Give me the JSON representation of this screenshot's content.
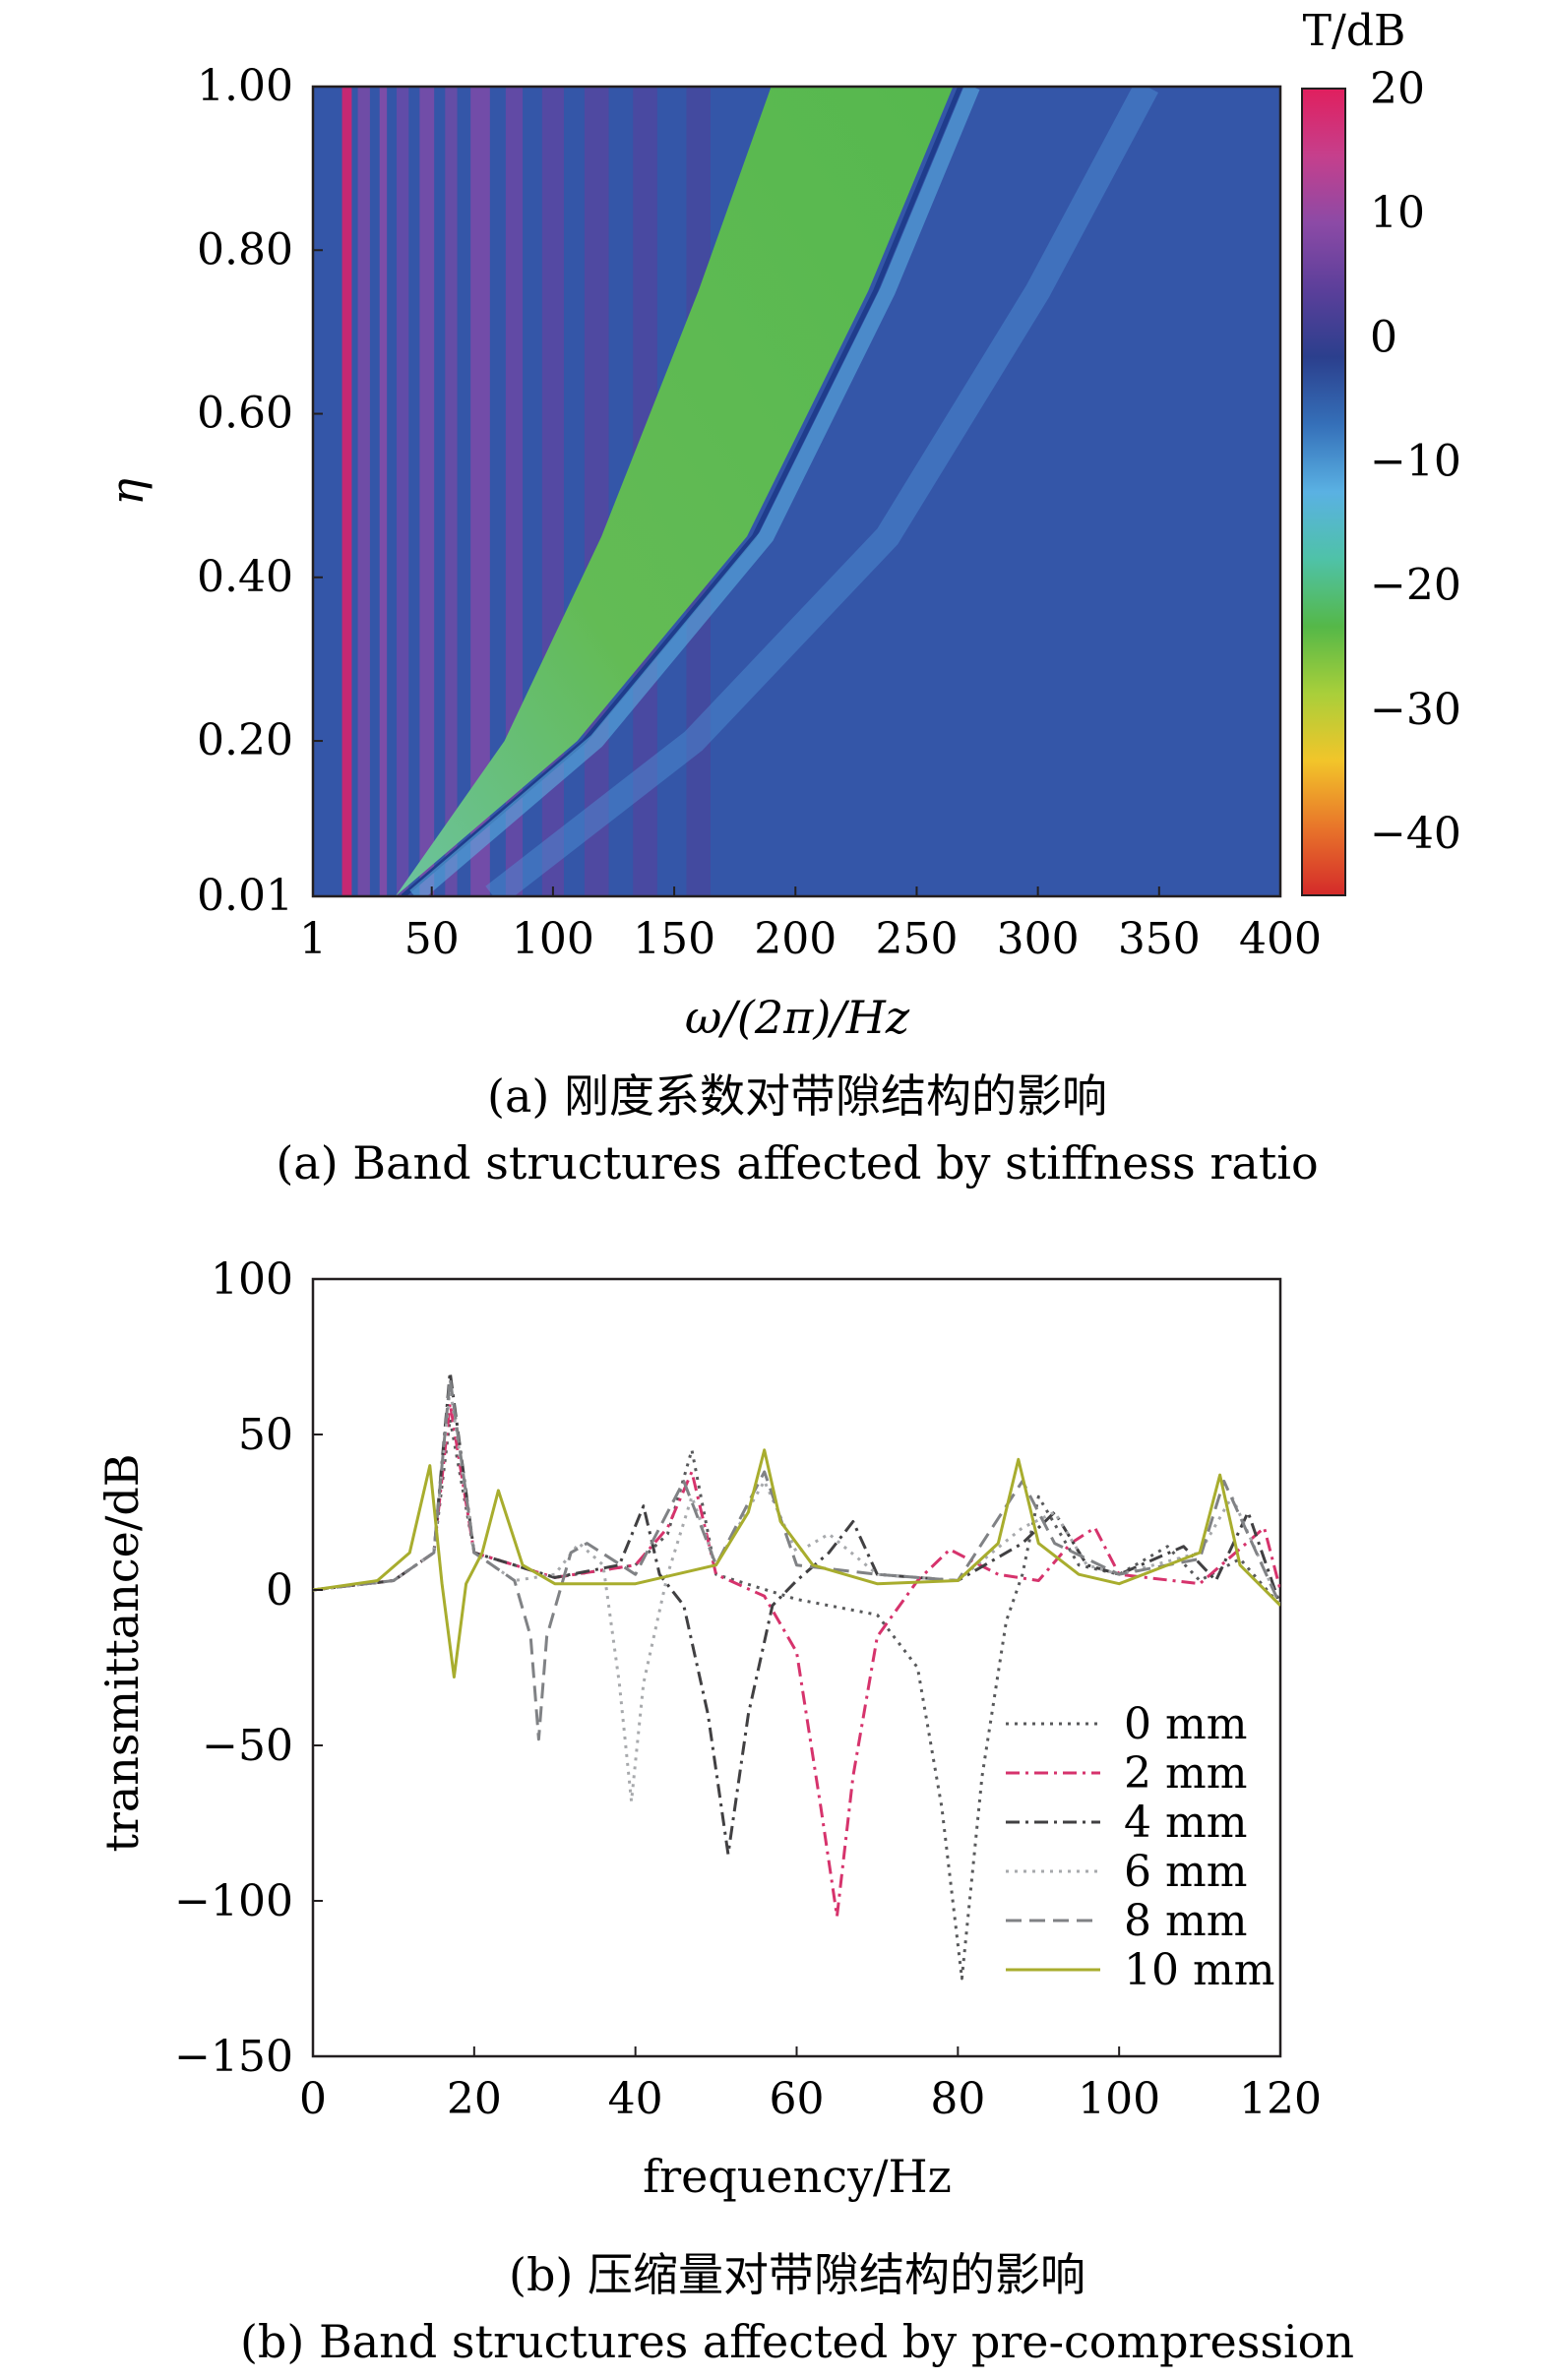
{
  "chart_data": [
    {
      "type": "heatmap",
      "xlabel": "ω/(2π)/Hz",
      "ylabel": "η",
      "x_ticks": [
        "1",
        "50",
        "100",
        "150",
        "200",
        "250",
        "300",
        "350",
        "400"
      ],
      "x_tick_values": [
        1,
        50,
        100,
        150,
        200,
        250,
        300,
        350,
        400
      ],
      "y_ticks": [
        "0.01",
        "0.20",
        "0.40",
        "0.60",
        "0.80",
        "1.00"
      ],
      "y_tick_values": [
        0.01,
        0.2,
        0.4,
        0.6,
        0.8,
        1.0
      ],
      "xlim": [
        1,
        400
      ],
      "ylim": [
        0.01,
        1.0
      ],
      "colorbar": {
        "label": "T/dB",
        "ticks": [
          "20",
          "10",
          "0",
          "−10",
          "−20",
          "−30",
          "−40"
        ],
        "tick_values": [
          20,
          10,
          0,
          -10,
          -20,
          -30,
          -40
        ],
        "range": [
          -45,
          20
        ],
        "colors": [
          "#d42a2a",
          "#e8742a",
          "#f2c52a",
          "#a9cf3a",
          "#55b848",
          "#4fc2a8",
          "#5ab1e3",
          "#3570b9",
          "#2b3f8d",
          "#5b3f9a",
          "#8c4aa6",
          "#c63f8c",
          "#e01f5e"
        ]
      },
      "band_gap": {
        "lower_edge": [
          [
            35,
            0.01
          ],
          [
            80,
            0.2
          ],
          [
            120,
            0.45
          ],
          [
            160,
            0.75
          ],
          [
            190,
            1.0
          ]
        ],
        "upper_edge": [
          [
            35,
            0.01
          ],
          [
            110,
            0.2
          ],
          [
            180,
            0.45
          ],
          [
            230,
            0.75
          ],
          [
            265,
            1.0
          ]
        ],
        "value_dB": -22
      },
      "caption_cn": "(a) 刚度系数对带隙结构的影响",
      "caption_en": "(a) Band structures affected by stiffness ratio"
    },
    {
      "type": "line",
      "xlabel": "frequency/Hz",
      "ylabel": "transmittance/dB",
      "x_ticks": [
        "0",
        "20",
        "40",
        "60",
        "80",
        "100",
        "120"
      ],
      "x_tick_values": [
        0,
        20,
        40,
        60,
        80,
        100,
        120
      ],
      "y_ticks": [
        "100",
        "50",
        "0",
        "−50",
        "−100",
        "−150"
      ],
      "y_tick_values": [
        100,
        50,
        0,
        -50,
        -100,
        -150
      ],
      "xlim": [
        0,
        120
      ],
      "ylim": [
        -150,
        100
      ],
      "legend_position": "lower-right",
      "series": [
        {
          "name": "0 mm",
          "color": "#58595b",
          "dash": "3,6",
          "x": [
            0,
            10,
            15,
            17,
            20,
            30,
            40,
            44,
            47,
            50,
            60,
            70,
            75,
            78,
            80.5,
            83,
            86,
            88,
            90,
            95,
            100,
            106,
            110,
            115,
            120
          ],
          "y": [
            0,
            3,
            12,
            55,
            12,
            4,
            8,
            18,
            45,
            5,
            -3,
            -8,
            -25,
            -70,
            -125,
            -60,
            -10,
            5,
            30,
            8,
            5,
            14,
            3,
            10,
            -5
          ]
        },
        {
          "name": "2 mm",
          "color": "#d6336c",
          "dash": "14,6,3,6",
          "x": [
            0,
            10,
            15,
            17,
            20,
            30,
            40,
            44,
            47,
            50,
            56,
            60,
            63,
            65,
            67,
            70,
            75,
            79,
            85,
            90,
            94,
            97,
            100,
            110,
            118,
            120
          ],
          "y": [
            0,
            3,
            12,
            60,
            12,
            4,
            8,
            20,
            38,
            5,
            -2,
            -20,
            -70,
            -105,
            -60,
            -15,
            3,
            13,
            5,
            3,
            15,
            20,
            5,
            2,
            20,
            0
          ]
        },
        {
          "name": "4 mm",
          "color": "#414042",
          "dash": "14,6,3,6",
          "x": [
            0,
            10,
            15,
            17,
            20,
            30,
            38,
            41,
            43,
            46,
            49,
            51.5,
            54,
            57,
            60,
            64,
            67,
            70,
            80,
            88,
            92,
            96,
            100,
            108,
            112,
            116,
            120
          ],
          "y": [
            0,
            3,
            12,
            70,
            12,
            4,
            8,
            27,
            5,
            -5,
            -40,
            -85,
            -40,
            -5,
            3,
            12,
            22,
            5,
            3,
            15,
            25,
            8,
            5,
            14,
            3,
            25,
            -5
          ]
        },
        {
          "name": "6 mm",
          "color": "#a7a9ac",
          "dash": "3,6",
          "x": [
            0,
            10,
            15,
            17,
            20,
            25,
            30,
            33,
            36,
            38,
            39.5,
            41,
            44,
            47,
            50,
            56,
            60,
            64,
            70,
            80,
            88,
            92,
            96,
            100,
            110,
            114,
            120
          ],
          "y": [
            0,
            3,
            12,
            65,
            12,
            3,
            5,
            15,
            8,
            -30,
            -68,
            -30,
            5,
            30,
            8,
            35,
            12,
            18,
            5,
            3,
            20,
            25,
            8,
            5,
            12,
            30,
            -5
          ]
        },
        {
          "name": "8 mm",
          "color": "#808285",
          "dash": "16,8",
          "x": [
            0,
            10,
            15,
            17,
            20,
            25,
            27,
            28,
            29,
            32,
            34,
            40,
            46,
            50,
            56,
            60,
            70,
            80,
            88,
            92,
            100,
            110,
            113,
            120
          ],
          "y": [
            0,
            3,
            12,
            68,
            12,
            3,
            -15,
            -48,
            -15,
            12,
            15,
            5,
            35,
            8,
            38,
            8,
            5,
            3,
            35,
            15,
            5,
            10,
            35,
            -5
          ]
        },
        {
          "name": "10 mm",
          "color": "#a8ad2e",
          "dash": "",
          "x": [
            0,
            8,
            12,
            14.5,
            16,
            17.5,
            19,
            21,
            23,
            26,
            30,
            40,
            50,
            54,
            56,
            58,
            62,
            70,
            80,
            85,
            87.5,
            90,
            95,
            100,
            110,
            112.5,
            115,
            120
          ],
          "y": [
            0,
            3,
            12,
            40,
            2,
            -28,
            2,
            12,
            32,
            8,
            2,
            2,
            8,
            25,
            45,
            22,
            8,
            2,
            3,
            15,
            42,
            15,
            5,
            2,
            12,
            37,
            8,
            -5
          ]
        }
      ],
      "caption_cn": "(b) 压缩量对带隙结构的影响",
      "caption_en": "(b) Band structures affected by pre-compression"
    }
  ]
}
